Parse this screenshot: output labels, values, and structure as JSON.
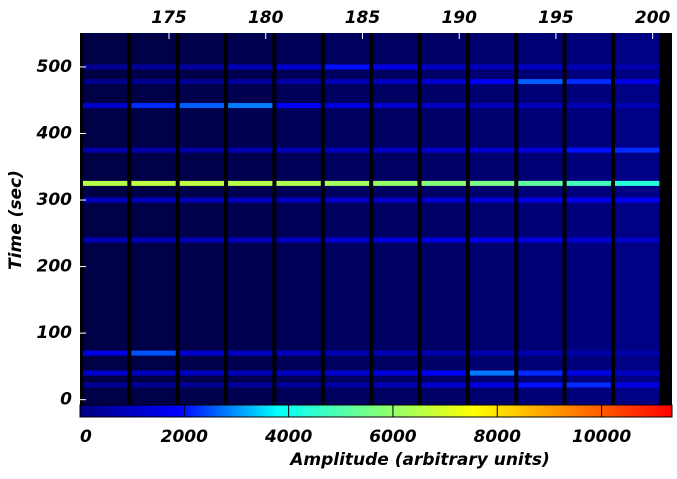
{
  "chart_data": {
    "type": "heatmap",
    "ylabel": "Time (sec)",
    "colorbar_label": "Amplitude (arbitrary units)",
    "xlim": [
      170.4,
      201
    ],
    "xticks": [
      175,
      180,
      185,
      190,
      195,
      200
    ],
    "ylim": [
      -8,
      551
    ],
    "yticks": [
      0,
      100,
      200,
      300,
      400,
      500
    ],
    "clim": [
      0,
      11350
    ],
    "cticks": [
      0,
      2000,
      4000,
      6000,
      8000,
      10000
    ],
    "colormap": [
      "#00007f",
      "#0000ff",
      "#00ffff",
      "#7fff7f",
      "#ffff00",
      "#ff7f00",
      "#ff0000"
    ],
    "x": [
      171.7,
      174.2,
      176.7,
      179.2,
      181.7,
      184.2,
      186.7,
      189.2,
      191.7,
      194.2,
      196.7,
      199.2
    ],
    "background": [
      50,
      80,
      150,
      300,
      500,
      700,
      800,
      900,
      1100,
      1300,
      1500,
      1700
    ],
    "y": [
      325,
      442,
      500,
      478,
      70,
      40,
      22,
      240,
      375,
      300
    ],
    "z": [
      [
        6500,
        6600,
        6600,
        6500,
        6400,
        6200,
        6000,
        5800,
        5600,
        5200,
        4800,
        4400
      ],
      [
        1200,
        2200,
        2600,
        2800,
        1800,
        1500,
        1200,
        1000,
        900,
        900,
        800,
        800
      ],
      [
        300,
        400,
        500,
        800,
        1200,
        2000,
        1500,
        1000,
        900,
        1000,
        800,
        700
      ],
      [
        200,
        200,
        300,
        400,
        600,
        800,
        1000,
        1200,
        1800,
        2600,
        2200,
        1500
      ],
      [
        1500,
        2500,
        1200,
        1000,
        900,
        800,
        800,
        700,
        700,
        700,
        600,
        600
      ],
      [
        1200,
        1000,
        1000,
        900,
        1000,
        1200,
        1400,
        1800,
        2800,
        2200,
        1500,
        1000
      ],
      [
        300,
        300,
        300,
        400,
        500,
        600,
        800,
        1200,
        1500,
        2000,
        2200,
        1500
      ],
      [
        800,
        800,
        800,
        900,
        1000,
        1200,
        1400,
        1500,
        1600,
        1400,
        1200,
        1000
      ],
      [
        600,
        600,
        600,
        700,
        800,
        900,
        1000,
        1100,
        1200,
        1300,
        2000,
        2200
      ],
      [
        900,
        900,
        900,
        1000,
        1000,
        1100,
        1100,
        1200,
        1300,
        1500,
        1600,
        1700
      ]
    ]
  }
}
